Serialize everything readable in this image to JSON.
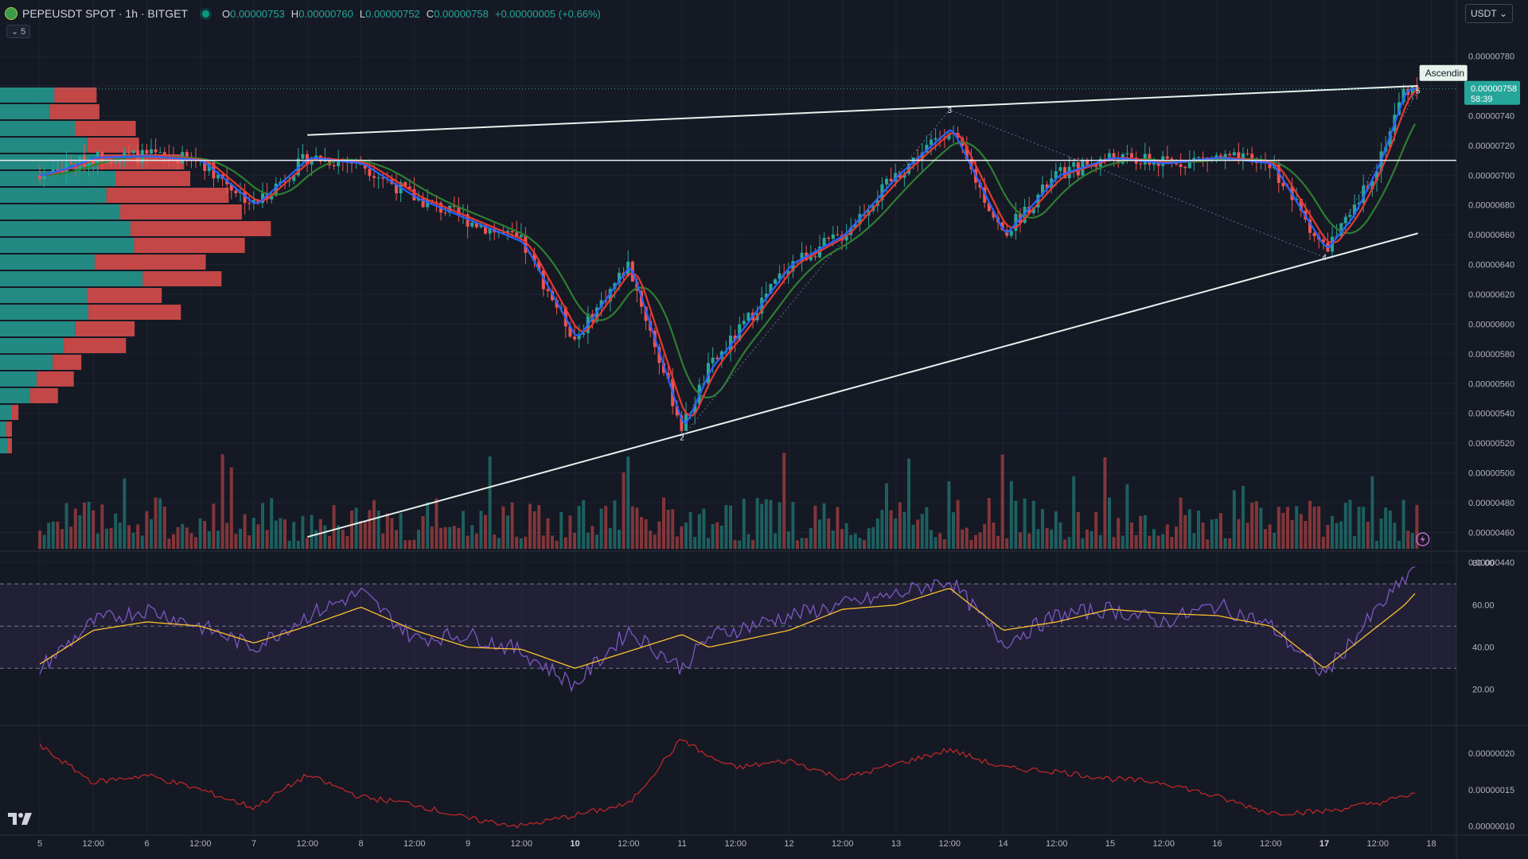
{
  "header": {
    "symbol": "PEPEUSDT SPOT · 1h · BITGET",
    "open_label": "O",
    "open": "0.00000753",
    "high_label": "H",
    "high": "0.00000760",
    "low_label": "L",
    "low": "0.00000752",
    "close_label": "C",
    "close": "0.00000758",
    "change": "+0.00000005 (+0.66%)"
  },
  "indicator_toggle": {
    "count": "5"
  },
  "currency_select": {
    "value": "USDT"
  },
  "price_tag": {
    "price": "0.00000758",
    "countdown": "58:39"
  },
  "pattern_label": "Ascendin",
  "icons": {
    "symbol": "pepe-coin-icon",
    "logo": "tradingview-logo-icon",
    "alert": "lightning-icon"
  },
  "colors": {
    "background": "#151924",
    "up": "#26a69a",
    "down": "#ef5350",
    "ma_fast": "#2962ff",
    "ma_mid": "#e53935",
    "ma_slow": "#2e7d32",
    "rsi": "#7e57c2",
    "rsi_ma": "#fbc02d",
    "pattern": "#e6f2ec",
    "bottom_line": "#c62828"
  },
  "chart_data": [
    {
      "type": "candlestick",
      "pane": "price",
      "title": "PEPEUSDT SPOT · 1h · BITGET",
      "x_tick_labels": [
        "5",
        "12:00",
        "6",
        "12:00",
        "7",
        "12:00",
        "8",
        "12:00",
        "9",
        "12:00",
        "10",
        "12:00",
        "11",
        "12:00",
        "12",
        "12:00",
        "13",
        "12:00",
        "14",
        "12:00",
        "15",
        "12:00",
        "16",
        "12:00",
        "17",
        "12:00",
        "18"
      ],
      "y_tick_labels": [
        "0.00000780",
        "0.00000760",
        "0.00000740",
        "0.00000720",
        "0.00000700",
        "0.00000680",
        "0.00000660",
        "0.00000640",
        "0.00000620",
        "0.00000600",
        "0.00000580",
        "0.00000560",
        "0.00000540",
        "0.00000520",
        "0.00000500",
        "0.00000480",
        "0.00000460",
        "0.00000440"
      ],
      "ylim": [
        4.33e-06,
        7.91e-06
      ],
      "price_path": [
        [
          "5",
          7e-06
        ],
        [
          "5 06:00",
          7.05e-06
        ],
        [
          "5 12:00",
          7.12e-06
        ],
        [
          "6",
          7.13e-06
        ],
        [
          "6 12:00",
          7.1e-06
        ],
        [
          "7",
          6.8e-06
        ],
        [
          "7 12:00",
          7.12e-06
        ],
        [
          "8",
          7.08e-06
        ],
        [
          "8 12:00",
          6.85e-06
        ],
        [
          "9",
          6.7e-06
        ],
        [
          "9 12:00",
          6.55e-06
        ],
        [
          "10 00:00",
          5.9e-06
        ],
        [
          "10 12:00",
          6.4e-06
        ],
        [
          "11",
          5.3e-06
        ],
        [
          "11 06:00",
          5.7e-06
        ],
        [
          "11 12:00",
          5.92e-06
        ],
        [
          "12",
          6.4e-06
        ],
        [
          "12 12:00",
          6.6e-06
        ],
        [
          "13",
          7e-06
        ],
        [
          "13 12:00",
          7.32e-06
        ],
        [
          "14",
          6.6e-06
        ],
        [
          "14 12:00",
          7e-06
        ],
        [
          "15",
          7.12e-06
        ],
        [
          "15 12:00",
          7.08e-06
        ],
        [
          "16",
          7.12e-06
        ],
        [
          "16 12:00",
          7.08e-06
        ],
        [
          "17",
          6.5e-06
        ],
        [
          "17 06:00",
          6.72e-06
        ],
        [
          "17 12:00",
          7.08e-06
        ],
        [
          "17 18:00",
          7.58e-06
        ]
      ],
      "last_price": 7.58e-06,
      "horizontal_line": 7.1e-06,
      "ascending_pattern": {
        "upper_line": [
          [
            "7 12:00",
            7.27e-06
          ],
          [
            "17 21:00",
            7.6e-06
          ]
        ],
        "lower_line": [
          [
            "7 12:00",
            4.57e-06
          ],
          [
            "17 21:00",
            6.61e-06
          ]
        ],
        "points": [
          {
            "label": "2",
            "at": "11",
            "price": 5.24e-06
          },
          {
            "label": "3",
            "at": "13 12:00",
            "price": 7.44e-06
          },
          {
            "label": "4",
            "at": "17",
            "price": 6.45e-06
          },
          {
            "label": "5",
            "at": "17 21:00",
            "price": 7.57e-06
          }
        ]
      },
      "moving_averages": [
        "fast",
        "mid",
        "slow"
      ],
      "volume_profile": true,
      "volume_bars": true
    },
    {
      "type": "line",
      "pane": "rsi",
      "y_tick_labels": [
        "80.00",
        "60.00",
        "40.00",
        "20.00"
      ],
      "ylim": [
        15,
        81
      ],
      "bands": [
        70,
        50,
        30
      ],
      "series": [
        {
          "points": [
            [
              "5",
              30
            ],
            [
              "5 12:00",
              52
            ],
            [
              "6",
              58
            ],
            [
              "6 12:00",
              50
            ],
            [
              "7",
              40
            ],
            [
              "7 12:00",
              55
            ],
            [
              "8",
              66
            ],
            [
              "8 12:00",
              44
            ],
            [
              "9",
              46
            ],
            [
              "9 12:00",
              38
            ],
            [
              "10 00:00",
              22
            ],
            [
              "10 12:00",
              48
            ],
            [
              "11",
              30
            ],
            [
              "11 06:00",
              45
            ],
            [
              "12",
              55
            ],
            [
              "12 12:00",
              60
            ],
            [
              "13",
              65
            ],
            [
              "13 12:00",
              72
            ],
            [
              "14",
              42
            ],
            [
              "14 12:00",
              55
            ],
            [
              "15",
              58
            ],
            [
              "15 12:00",
              52
            ],
            [
              "16",
              60
            ],
            [
              "16 12:00",
              50
            ],
            [
              "17",
              27
            ],
            [
              "17 12:00",
              58
            ],
            [
              "17 18:00",
              72
            ],
            [
              "17 21:00",
              81
            ]
          ]
        },
        {
          "points": [
            [
              "5",
              32
            ],
            [
              "5 12:00",
              48
            ],
            [
              "6",
              52
            ],
            [
              "6 12:00",
              50
            ],
            [
              "7",
              42
            ],
            [
              "7 12:00",
              50
            ],
            [
              "8",
              59
            ],
            [
              "8 12:00",
              48
            ],
            [
              "9",
              40
            ],
            [
              "9 12:00",
              39
            ],
            [
              "10 00:00",
              30
            ],
            [
              "10 12:00",
              38
            ],
            [
              "11",
              46
            ],
            [
              "11 06:00",
              40
            ],
            [
              "12",
              48
            ],
            [
              "12 12:00",
              58
            ],
            [
              "13",
              60
            ],
            [
              "13 12:00",
              68
            ],
            [
              "14",
              48
            ],
            [
              "14 12:00",
              52
            ],
            [
              "15",
              58
            ],
            [
              "15 12:00",
              56
            ],
            [
              "16",
              55
            ],
            [
              "16 12:00",
              50
            ],
            [
              "17",
              30
            ],
            [
              "17 12:00",
              50
            ],
            [
              "17 18:00",
              60
            ],
            [
              "17 21:00",
              67
            ]
          ]
        }
      ]
    },
    {
      "type": "line",
      "pane": "lower",
      "y_tick_labels": [
        "0.00000020",
        "0.00000015",
        "0.00000010"
      ],
      "ylim": [
        9.3e-08,
        2.35e-07
      ],
      "series": [
        {
          "points": [
            [
              "5",
              2.1e-07
            ],
            [
              "5 12:00",
              1.6e-07
            ],
            [
              "6",
              1.7e-07
            ],
            [
              "6 12:00",
              1.5e-07
            ],
            [
              "7",
              1.25e-07
            ],
            [
              "7 12:00",
              1.7e-07
            ],
            [
              "8",
              1.4e-07
            ],
            [
              "8 12:00",
              1.3e-07
            ],
            [
              "9",
              1.1e-07
            ],
            [
              "9 12:00",
              1e-07
            ],
            [
              "10 00:00",
              1.15e-07
            ],
            [
              "10 12:00",
              1.3e-07
            ],
            [
              "11",
              2.2e-07
            ],
            [
              "11 06:00",
              1.95e-07
            ],
            [
              "11 12:00",
              1.8e-07
            ],
            [
              "12",
              1.9e-07
            ],
            [
              "12 12:00",
              1.65e-07
            ],
            [
              "13",
              1.85e-07
            ],
            [
              "13 12:00",
              2.05e-07
            ],
            [
              "14",
              1.8e-07
            ],
            [
              "14 12:00",
              1.75e-07
            ],
            [
              "15",
              1.65e-07
            ],
            [
              "15 12:00",
              1.6e-07
            ],
            [
              "16",
              1.4e-07
            ],
            [
              "16 12:00",
              1.18e-07
            ],
            [
              "17",
              1.2e-07
            ],
            [
              "17 12:00",
              1.32e-07
            ],
            [
              "17 18:00",
              1.4e-07
            ],
            [
              "17 21:00",
              1.48e-07
            ]
          ]
        }
      ]
    }
  ]
}
